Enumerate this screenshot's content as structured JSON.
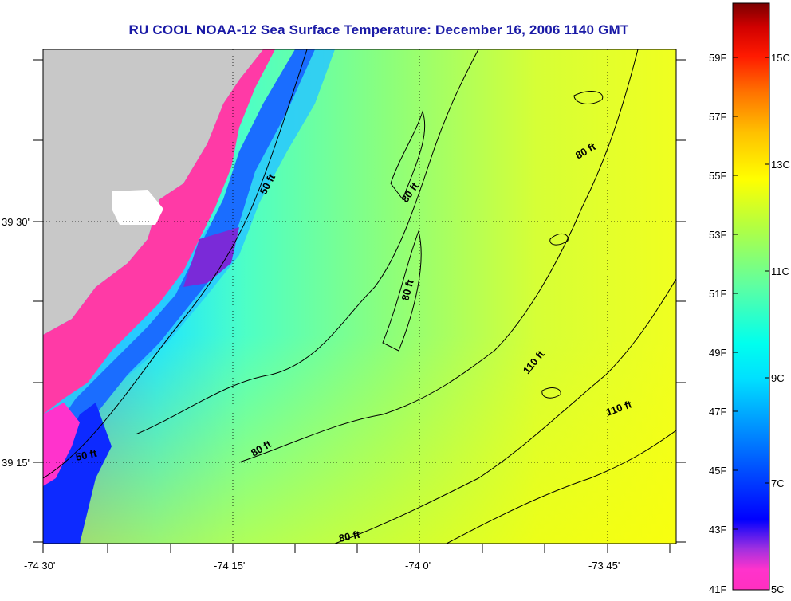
{
  "title": "RU COOL  NOAA-12  Sea Surface Temperature:  December 16, 2006 1140 GMT",
  "x_tick_labels": [
    "-74 30'",
    "-74 15'",
    "-74 0'",
    "-73 45'"
  ],
  "y_tick_labels": [
    "39 30'",
    "39 15'"
  ],
  "contour_labels": [
    "50 ft",
    "80 ft",
    "80 ft",
    "80 ft",
    "110 ft",
    "110 ft",
    "80 ft",
    "50 ft",
    "80 ft"
  ],
  "colorbar": {
    "fahrenheit_labels": [
      "59F",
      "57F",
      "55F",
      "53F",
      "51F",
      "49F",
      "47F",
      "45F",
      "43F",
      "41F"
    ],
    "celsius_labels": [
      "15C",
      "13C",
      "11C",
      "9C",
      "7C",
      "5C"
    ],
    "colors": [
      "#ff2fae",
      "#ff33cc",
      "#7b2fd6",
      "#0000ff",
      "#0073ff",
      "#00c8ff",
      "#00ffff",
      "#33ffcc",
      "#7fff7f",
      "#c8ff33",
      "#ffff00",
      "#ffc800",
      "#ff8c00",
      "#ff3300",
      "#ff0000",
      "#cc0000",
      "#800000"
    ]
  },
  "colors": {
    "land": "#c8c8c8",
    "cold_coastal": "#ff3aa6",
    "deep_blue": "#0a1aff",
    "ocean_mid": "#52ffb5",
    "ocean_warm": "#e8ff28",
    "title": "#1a1aa6"
  }
}
